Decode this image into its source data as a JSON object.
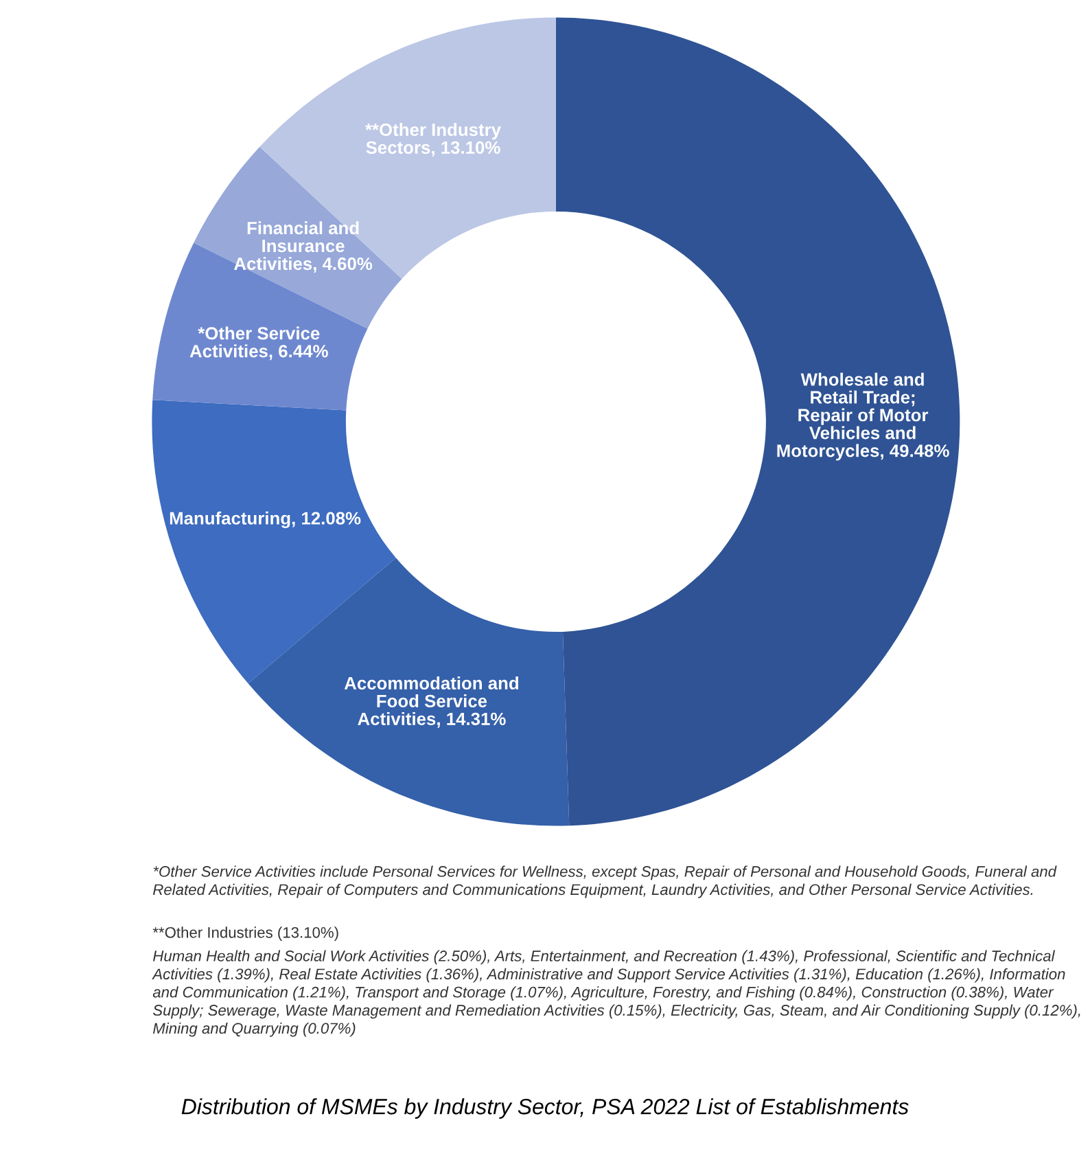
{
  "chart_data": {
    "type": "donut",
    "title": "Distribution of MSMEs by Industry Sector, PSA 2022 List of Establishments",
    "categories": [
      "Wholesale and\nRetail Trade;\nRepair of Motor\nVehicles and\nMotorcycles",
      "Accommodation and\nFood Service\nActivities",
      "Manufacturing",
      "*Other Service\nActivities",
      "Financial and\nInsurance\nActivities",
      "**Other Industry\nSectors"
    ],
    "values": [
      49.48,
      14.31,
      12.08,
      6.44,
      4.6,
      13.1
    ],
    "value_labels": [
      "49.48%",
      "14.31%",
      "12.08%",
      "6.44%",
      "4.60%",
      "13.10%"
    ],
    "colors": [
      "#2f5394",
      "#3560aa",
      "#3d6cc0",
      "#6e88cf",
      "#97a8d9",
      "#bcc7e5"
    ],
    "legend": false,
    "annotations": [
      "*Other Service Activities include Personal Services for Wellness, except Spas, Repair of Personal and Household Goods, Funeral and Related Activities, Repair of Computers and Communications Equipment, Laundry Activities, and Other Personal Service Activities.",
      "**Other Industries (13.10%)",
      "Human Health and Social Work Activities (2.50%), Arts, Entertainment, and Recreation (1.43%), Professional, Scientific and Technical Activities (1.39%), Real Estate Activities (1.36%), Administrative and Support Service Activities (1.31%), Education (1.26%), Information and Communication (1.21%), Transport and Storage (1.07%), Agriculture, Forestry, and Fishing (0.84%), Construction (0.38%), Water Supply; Sewerage, Waste Management and Remediation Activities (0.15%), Electricity, Gas, Steam, and Air Conditioning Supply (0.12%), Mining and Quarrying (0.07%)"
    ]
  }
}
